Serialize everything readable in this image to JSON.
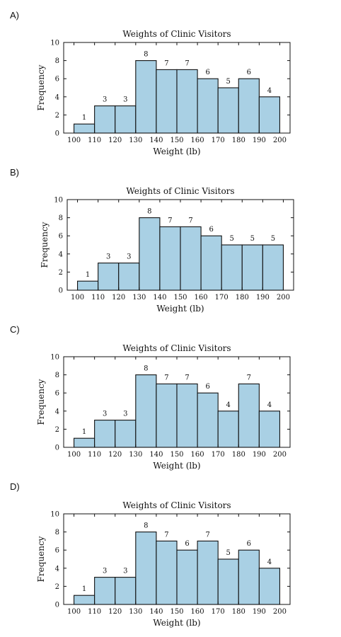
{
  "chart_data": [
    {
      "option_label": "A)",
      "type": "bar",
      "title": "Weights of Clinic Visitors",
      "xlabel": "Weight (lb)",
      "ylabel": "Frequency",
      "bin_edges": [
        100,
        110,
        120,
        130,
        140,
        150,
        160,
        170,
        180,
        190,
        200
      ],
      "values": [
        1,
        3,
        3,
        8,
        7,
        7,
        6,
        5,
        6,
        4
      ],
      "xticks": [
        100,
        110,
        120,
        130,
        140,
        150,
        160,
        170,
        180,
        190,
        200
      ],
      "yticks": [
        0,
        2,
        4,
        6,
        8,
        10
      ],
      "ylim": [
        0,
        10
      ],
      "bar_color": "#a9d0e4",
      "grid": false,
      "data_labels": true
    },
    {
      "option_label": "B)",
      "type": "bar",
      "title": "Weights of Clinic Visitors",
      "xlabel": "Weight (lb)",
      "ylabel": "Frequency",
      "bin_edges": [
        100,
        110,
        120,
        130,
        140,
        150,
        160,
        170,
        180,
        190,
        200
      ],
      "values": [
        1,
        3,
        3,
        8,
        7,
        7,
        6,
        5,
        5,
        5
      ],
      "xticks": [
        100,
        110,
        120,
        130,
        140,
        150,
        160,
        170,
        180,
        190,
        200
      ],
      "yticks": [
        0,
        2,
        4,
        6,
        8,
        10
      ],
      "ylim": [
        0,
        10
      ],
      "bar_color": "#a9d0e4",
      "grid": false,
      "data_labels": true
    },
    {
      "option_label": "C)",
      "type": "bar",
      "title": "Weights of Clinic Visitors",
      "xlabel": "Weight (lb)",
      "ylabel": "Frequency",
      "bin_edges": [
        100,
        110,
        120,
        130,
        140,
        150,
        160,
        170,
        180,
        190,
        200
      ],
      "values": [
        1,
        3,
        3,
        8,
        7,
        7,
        6,
        4,
        7,
        4
      ],
      "xticks": [
        100,
        110,
        120,
        130,
        140,
        150,
        160,
        170,
        180,
        190,
        200
      ],
      "yticks": [
        0,
        2,
        4,
        6,
        8,
        10
      ],
      "ylim": [
        0,
        10
      ],
      "bar_color": "#a9d0e4",
      "grid": false,
      "data_labels": true
    },
    {
      "option_label": "D)",
      "type": "bar",
      "title": "Weights of Clinic Visitors",
      "xlabel": "Weight (lb)",
      "ylabel": "Frequency",
      "bin_edges": [
        100,
        110,
        120,
        130,
        140,
        150,
        160,
        170,
        180,
        190,
        200
      ],
      "values": [
        1,
        3,
        3,
        8,
        7,
        6,
        7,
        5,
        6,
        4
      ],
      "xticks": [
        100,
        110,
        120,
        130,
        140,
        150,
        160,
        170,
        180,
        190,
        200
      ],
      "yticks": [
        0,
        2,
        4,
        6,
        8,
        10
      ],
      "ylim": [
        0,
        10
      ],
      "bar_color": "#a9d0e4",
      "grid": false,
      "data_labels": true
    }
  ]
}
